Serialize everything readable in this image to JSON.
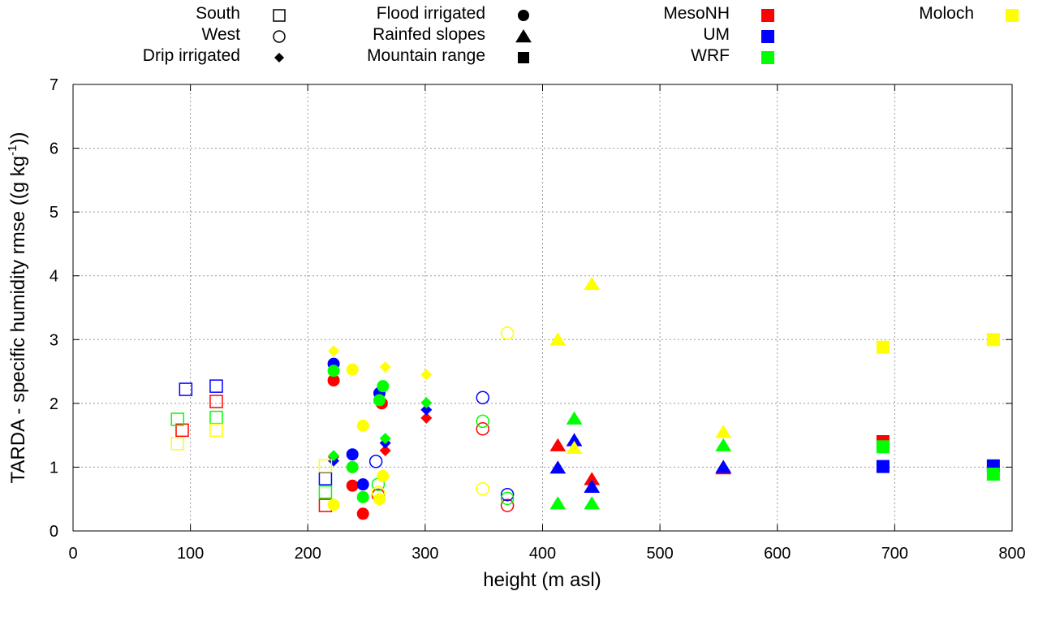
{
  "chart_data": {
    "type": "scatter",
    "title": "",
    "xlabel": "height (m asl)",
    "ylabel": "TARDA - specific humidity rmse ((g kg-1))",
    "ylabel_parts": {
      "main": "TARDA - specific humidity rmse ((g kg",
      "sup": "-1",
      "tail": "))"
    },
    "xlim": [
      0,
      800
    ],
    "ylim": [
      0,
      7
    ],
    "xticks": [
      0,
      100,
      200,
      300,
      400,
      500,
      600,
      700,
      800
    ],
    "yticks": [
      0,
      1,
      2,
      3,
      4,
      5,
      6,
      7
    ],
    "grid": true,
    "legend_location": "top",
    "legend": {
      "shapes": [
        {
          "label": "South",
          "marker": "square",
          "filled": false
        },
        {
          "label": "West",
          "marker": "circle",
          "filled": false
        },
        {
          "label": "Drip irrigated",
          "marker": "diamond",
          "filled": true
        },
        {
          "label": "Flood irrigated",
          "marker": "circle",
          "filled": true
        },
        {
          "label": "Rainfed slopes",
          "marker": "triangle",
          "filled": true
        },
        {
          "label": "Mountain range",
          "marker": "square",
          "filled": true
        }
      ],
      "models": [
        {
          "label": "MesoNH",
          "color": "#ff0000"
        },
        {
          "label": "UM",
          "color": "#0000ff"
        },
        {
          "label": "WRF",
          "color": "#00ff00"
        },
        {
          "label": "Moloch",
          "color": "#ffff00"
        }
      ]
    },
    "series": [
      {
        "name": "MesoNH",
        "color": "#ff0000",
        "points": [
          {
            "x": 93,
            "y": 1.58,
            "cat": "South"
          },
          {
            "x": 122,
            "y": 2.03,
            "cat": "South"
          },
          {
            "x": 215,
            "y": 0.4,
            "cat": "South"
          },
          {
            "x": 260,
            "y": 0.56,
            "cat": "West"
          },
          {
            "x": 349,
            "y": 1.6,
            "cat": "West"
          },
          {
            "x": 370,
            "y": 0.4,
            "cat": "West"
          },
          {
            "x": 222,
            "y": 1.16,
            "cat": "Drip irrigated"
          },
          {
            "x": 266,
            "y": 1.26,
            "cat": "Drip irrigated"
          },
          {
            "x": 301,
            "y": 1.77,
            "cat": "Drip irrigated"
          },
          {
            "x": 222,
            "y": 2.36,
            "cat": "Flood irrigated"
          },
          {
            "x": 238,
            "y": 0.71,
            "cat": "Flood irrigated"
          },
          {
            "x": 247,
            "y": 0.27,
            "cat": "Flood irrigated"
          },
          {
            "x": 263,
            "y": 2.0,
            "cat": "Flood irrigated"
          },
          {
            "x": 413,
            "y": 1.34,
            "cat": "Rainfed slopes"
          },
          {
            "x": 442,
            "y": 0.81,
            "cat": "Rainfed slopes"
          },
          {
            "x": 554,
            "y": 0.98,
            "cat": "Rainfed slopes"
          },
          {
            "x": 690,
            "y": 1.4,
            "cat": "Mountain range"
          }
        ]
      },
      {
        "name": "UM",
        "color": "#0000ff",
        "points": [
          {
            "x": 96,
            "y": 2.22,
            "cat": "South"
          },
          {
            "x": 122,
            "y": 2.27,
            "cat": "South"
          },
          {
            "x": 215,
            "y": 0.82,
            "cat": "South"
          },
          {
            "x": 258,
            "y": 1.09,
            "cat": "West"
          },
          {
            "x": 349,
            "y": 2.09,
            "cat": "West"
          },
          {
            "x": 370,
            "y": 0.57,
            "cat": "West"
          },
          {
            "x": 222,
            "y": 1.1,
            "cat": "Drip irrigated"
          },
          {
            "x": 266,
            "y": 1.38,
            "cat": "Drip irrigated"
          },
          {
            "x": 301,
            "y": 1.9,
            "cat": "Drip irrigated"
          },
          {
            "x": 222,
            "y": 2.62,
            "cat": "Flood irrigated"
          },
          {
            "x": 238,
            "y": 1.2,
            "cat": "Flood irrigated"
          },
          {
            "x": 247,
            "y": 0.73,
            "cat": "Flood irrigated"
          },
          {
            "x": 261,
            "y": 2.16,
            "cat": "Flood irrigated"
          },
          {
            "x": 413,
            "y": 0.99,
            "cat": "Rainfed slopes"
          },
          {
            "x": 427,
            "y": 1.42,
            "cat": "Rainfed slopes"
          },
          {
            "x": 442,
            "y": 0.69,
            "cat": "Rainfed slopes"
          },
          {
            "x": 554,
            "y": 1.0,
            "cat": "Rainfed slopes"
          },
          {
            "x": 690,
            "y": 1.01,
            "cat": "Mountain range"
          },
          {
            "x": 784,
            "y": 1.02,
            "cat": "Mountain range"
          }
        ]
      },
      {
        "name": "WRF",
        "color": "#00ff00",
        "points": [
          {
            "x": 89,
            "y": 1.75,
            "cat": "South"
          },
          {
            "x": 122,
            "y": 1.78,
            "cat": "South"
          },
          {
            "x": 215,
            "y": 0.61,
            "cat": "South"
          },
          {
            "x": 260,
            "y": 0.73,
            "cat": "West"
          },
          {
            "x": 349,
            "y": 1.72,
            "cat": "West"
          },
          {
            "x": 370,
            "y": 0.51,
            "cat": "West"
          },
          {
            "x": 222,
            "y": 1.18,
            "cat": "Drip irrigated"
          },
          {
            "x": 266,
            "y": 1.45,
            "cat": "Drip irrigated"
          },
          {
            "x": 301,
            "y": 2.01,
            "cat": "Drip irrigated"
          },
          {
            "x": 222,
            "y": 2.51,
            "cat": "Flood irrigated"
          },
          {
            "x": 238,
            "y": 1.0,
            "cat": "Flood irrigated"
          },
          {
            "x": 247,
            "y": 0.53,
            "cat": "Flood irrigated"
          },
          {
            "x": 261,
            "y": 2.05,
            "cat": "Flood irrigated"
          },
          {
            "x": 264,
            "y": 2.27,
            "cat": "Flood irrigated"
          },
          {
            "x": 413,
            "y": 0.43,
            "cat": "Rainfed slopes"
          },
          {
            "x": 427,
            "y": 1.76,
            "cat": "Rainfed slopes"
          },
          {
            "x": 442,
            "y": 0.43,
            "cat": "Rainfed slopes"
          },
          {
            "x": 554,
            "y": 1.34,
            "cat": "Rainfed slopes"
          },
          {
            "x": 690,
            "y": 1.32,
            "cat": "Mountain range"
          },
          {
            "x": 784,
            "y": 0.89,
            "cat": "Mountain range"
          }
        ]
      },
      {
        "name": "Moloch",
        "color": "#ffff00",
        "points": [
          {
            "x": 89,
            "y": 1.37,
            "cat": "South"
          },
          {
            "x": 122,
            "y": 1.58,
            "cat": "South"
          },
          {
            "x": 215,
            "y": 1.02,
            "cat": "South"
          },
          {
            "x": 260,
            "y": 0.6,
            "cat": "West"
          },
          {
            "x": 349,
            "y": 0.66,
            "cat": "West"
          },
          {
            "x": 370,
            "y": 3.1,
            "cat": "West"
          },
          {
            "x": 222,
            "y": 2.82,
            "cat": "Drip irrigated"
          },
          {
            "x": 266,
            "y": 2.57,
            "cat": "Drip irrigated"
          },
          {
            "x": 301,
            "y": 2.45,
            "cat": "Drip irrigated"
          },
          {
            "x": 222,
            "y": 0.41,
            "cat": "Flood irrigated"
          },
          {
            "x": 238,
            "y": 2.53,
            "cat": "Flood irrigated"
          },
          {
            "x": 247,
            "y": 1.65,
            "cat": "Flood irrigated"
          },
          {
            "x": 261,
            "y": 0.5,
            "cat": "Flood irrigated"
          },
          {
            "x": 264,
            "y": 0.86,
            "cat": "Flood irrigated"
          },
          {
            "x": 413,
            "y": 3.0,
            "cat": "Rainfed slopes"
          },
          {
            "x": 427,
            "y": 1.3,
            "cat": "Rainfed slopes"
          },
          {
            "x": 442,
            "y": 3.87,
            "cat": "Rainfed slopes"
          },
          {
            "x": 554,
            "y": 1.55,
            "cat": "Rainfed slopes"
          },
          {
            "x": 690,
            "y": 2.88,
            "cat": "Mountain range"
          },
          {
            "x": 784,
            "y": 3.0,
            "cat": "Mountain range"
          }
        ]
      }
    ]
  }
}
